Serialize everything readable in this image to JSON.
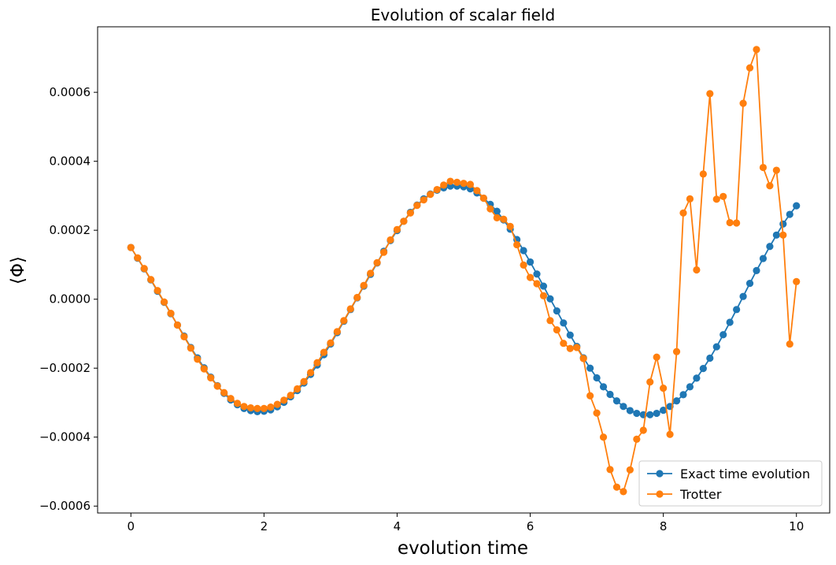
{
  "chart_data": {
    "type": "line",
    "title": "Evolution of scalar field",
    "xlabel": "evolution time",
    "ylabel": "⟨Φ⟩",
    "xlim": [
      -0.5,
      10.5
    ],
    "ylim": [
      -0.00062,
      0.00079
    ],
    "x_ticks": [
      0,
      2,
      4,
      6,
      8,
      10
    ],
    "x_tick_labels": [
      "0",
      "2",
      "4",
      "6",
      "8",
      "10"
    ],
    "y_ticks": [
      -0.0006,
      -0.0004,
      -0.0002,
      0.0,
      0.0002,
      0.0004,
      0.0006
    ],
    "y_tick_labels": [
      "−0.0006",
      "−0.0004",
      "−0.0002",
      "0.0000",
      "0.0002",
      "0.0004",
      "0.0006"
    ],
    "grid": false,
    "legend_position": "bottom-right",
    "x": [
      0.0,
      0.1,
      0.2,
      0.3,
      0.4,
      0.5,
      0.6,
      0.7,
      0.8,
      0.9,
      1.0,
      1.1,
      1.2,
      1.3,
      1.4,
      1.5,
      1.6,
      1.7,
      1.8,
      1.9,
      2.0,
      2.1,
      2.2,
      2.3,
      2.4,
      2.5,
      2.6,
      2.7,
      2.8,
      2.9,
      3.0,
      3.1,
      3.2,
      3.3,
      3.4,
      3.5,
      3.6,
      3.7,
      3.8,
      3.9,
      4.0,
      4.1,
      4.2,
      4.3,
      4.4,
      4.5,
      4.6,
      4.7,
      4.8,
      4.9,
      5.0,
      5.1,
      5.2,
      5.3,
      5.4,
      5.5,
      5.6,
      5.7,
      5.8,
      5.9,
      6.0,
      6.1,
      6.2,
      6.3,
      6.4,
      6.5,
      6.6,
      6.7,
      6.8,
      6.9,
      7.0,
      7.1,
      7.2,
      7.3,
      7.4,
      7.5,
      7.6,
      7.7,
      7.8,
      7.9,
      8.0,
      8.1,
      8.2,
      8.3,
      8.4,
      8.5,
      8.6,
      8.7,
      8.8,
      8.9,
      9.0,
      9.1,
      9.2,
      9.3,
      9.4,
      9.5,
      9.6,
      9.7,
      9.8,
      9.9,
      10.0
    ],
    "series": [
      {
        "name": "Exact time evolution",
        "color": "#1f77b4",
        "values": [
          0.00015,
          0.000119,
          8.8e-05,
          5.6e-05,
          2.3e-05,
          -9e-06,
          -4.2e-05,
          -7.5e-05,
          -0.000107,
          -0.00014,
          -0.00017,
          -0.000199,
          -0.000226,
          -0.000251,
          -0.000273,
          -0.000292,
          -0.000306,
          -0.000317,
          -0.000323,
          -0.000326,
          -0.000325,
          -0.000321,
          -0.000312,
          -0.000299,
          -0.000283,
          -0.000265,
          -0.000243,
          -0.000218,
          -0.000191,
          -0.000161,
          -0.00013,
          -9.7e-05,
          -6.4e-05,
          -3e-05,
          4e-06,
          3.8e-05,
          7.2e-05,
          0.000105,
          0.000139,
          0.00017,
          0.000199,
          0.000226,
          0.000252,
          0.000273,
          0.000291,
          0.000305,
          0.000316,
          0.000323,
          0.000328,
          0.000328,
          0.000326,
          0.00032,
          0.000308,
          0.000293,
          0.000275,
          0.000255,
          0.00023,
          0.000203,
          0.000173,
          0.000141,
          0.000108,
          7.3e-05,
          3.8e-05,
          1e-06,
          -3.4e-05,
          -6.9e-05,
          -0.000104,
          -0.000137,
          -0.00017,
          -0.0002,
          -0.000228,
          -0.000254,
          -0.000276,
          -0.000295,
          -0.000311,
          -0.000323,
          -0.000331,
          -0.000335,
          -0.000335,
          -0.000331,
          -0.000322,
          -0.000311,
          -0.000295,
          -0.000277,
          -0.000254,
          -0.000229,
          -0.000201,
          -0.000171,
          -0.000138,
          -0.000103,
          -6.7e-05,
          -3e-05,
          8e-06,
          4.6e-05,
          8.3e-05,
          0.000118,
          0.000153,
          0.000186,
          0.000218,
          0.000246,
          0.000271
        ]
      },
      {
        "name": "Trotter",
        "color": "#ff7f0e",
        "values": [
          0.00015,
          0.00012,
          8.9e-05,
          5.7e-05,
          2.5e-05,
          -8e-06,
          -4.1e-05,
          -7.5e-05,
          -0.000109,
          -0.000142,
          -0.000174,
          -0.000202,
          -0.000228,
          -0.000252,
          -0.000271,
          -0.000288,
          -0.000302,
          -0.000311,
          -0.000315,
          -0.000317,
          -0.000317,
          -0.000313,
          -0.000305,
          -0.000293,
          -0.000279,
          -0.00026,
          -0.000239,
          -0.000213,
          -0.000184,
          -0.000154,
          -0.000127,
          -9.4e-05,
          -6.2e-05,
          -2.8e-05,
          5e-06,
          4e-05,
          7.5e-05,
          0.000106,
          0.000136,
          0.000172,
          0.000202,
          0.000226,
          0.00025,
          0.000272,
          0.000288,
          0.000304,
          0.000318,
          0.000331,
          0.000342,
          0.000339,
          0.000336,
          0.000333,
          0.000315,
          0.000293,
          0.000262,
          0.000236,
          0.000232,
          0.000211,
          0.000158,
          9.9e-05,
          6.3e-05,
          4.5e-05,
          1e-05,
          -6.2e-05,
          -8.9e-05,
          -0.000128,
          -0.000143,
          -0.00014,
          -0.000172,
          -0.00028,
          -0.00033,
          -0.0004,
          -0.000494,
          -0.000545,
          -0.000558,
          -0.000495,
          -0.000406,
          -0.00038,
          -0.00024,
          -0.000168,
          -0.000258,
          -0.000392,
          -0.000152,
          0.00025,
          0.000291,
          8.5e-05,
          0.000363,
          0.000596,
          0.00029,
          0.000298,
          0.000222,
          0.000221,
          0.000568,
          0.000671,
          0.000724,
          0.000382,
          0.000329,
          0.000374,
          0.000186,
          -0.00013,
          5.1e-05
        ]
      }
    ]
  }
}
